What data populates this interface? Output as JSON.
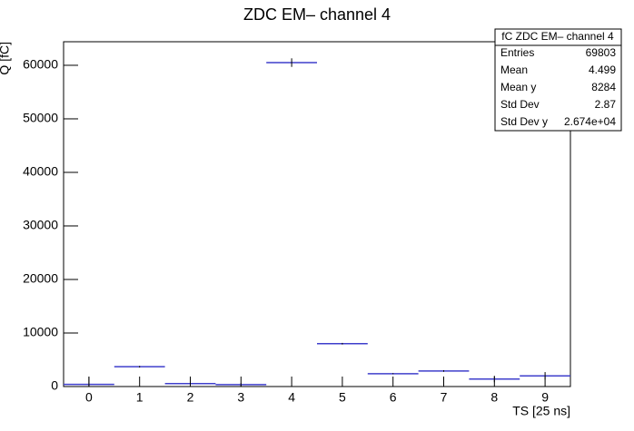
{
  "chart_data": {
    "type": "histogram",
    "title": "ZDC EM– channel 4",
    "x_label": "TS [25 ns]",
    "y_label": "Q [fC]",
    "bins": [
      -0.5,
      0.5,
      1.5,
      2.5,
      3.5,
      4.5,
      5.5,
      6.5,
      7.5,
      8.5,
      9.5
    ],
    "values": [
      400,
      3700,
      550,
      350,
      60500,
      8000,
      2400,
      2900,
      1400,
      2000
    ],
    "errors": [
      1400,
      150,
      400,
      300,
      800,
      150,
      100,
      150,
      600,
      700
    ],
    "color": "#3f3fcc",
    "xlim": [
      -0.5,
      9.5
    ],
    "xticks": [
      0,
      1,
      2,
      3,
      4,
      5,
      6,
      7,
      8,
      9
    ],
    "ylim": [
      0,
      64400
    ],
    "yticks": [
      0,
      10000,
      20000,
      30000,
      40000,
      50000,
      60000
    ],
    "stats": {
      "title": "fC ZDC EM– channel 4",
      "rows": [
        [
          "Entries",
          "69803"
        ],
        [
          "Mean",
          "4.499"
        ],
        [
          "Mean y",
          "8284"
        ],
        [
          "Std Dev",
          "2.87"
        ],
        [
          "Std Dev y",
          "2.674e+04"
        ]
      ]
    }
  }
}
